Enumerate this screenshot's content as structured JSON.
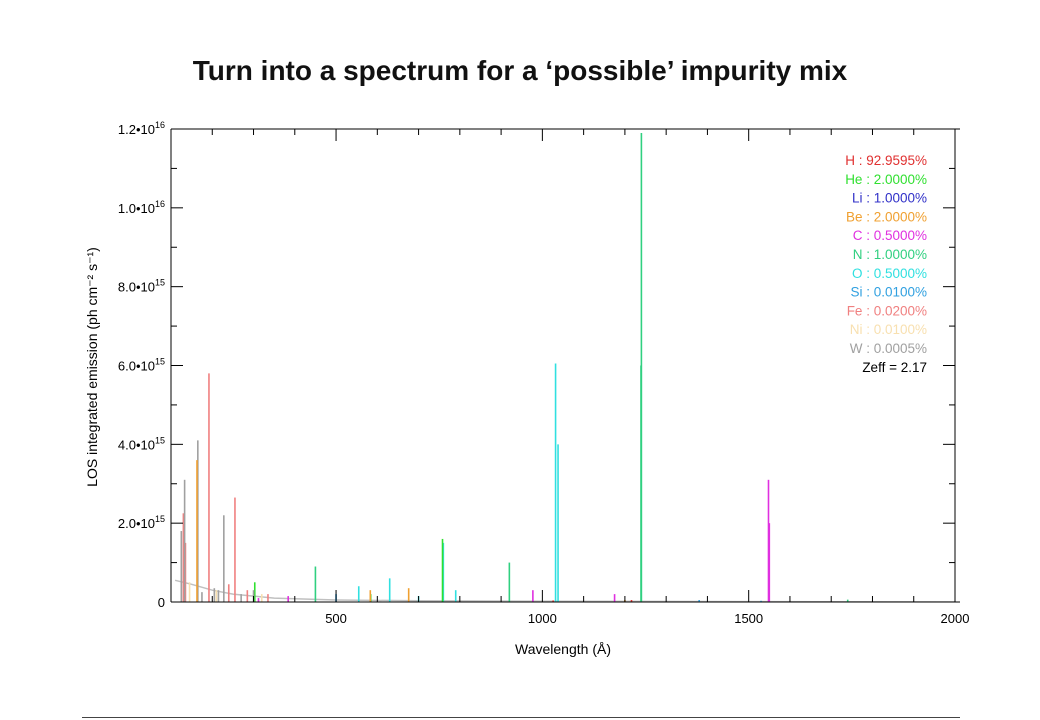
{
  "slide": {
    "title": "Turn into a spectrum for a ‘possible’ impurity mix"
  },
  "chart_data": {
    "type": "line",
    "title": "",
    "xlabel": "Wavelength (Å)",
    "ylabel": "LOS integrated emission (ph cm⁻² s⁻¹)",
    "xlim": [
      100,
      2000
    ],
    "ylim": [
      0,
      1.2e+16
    ],
    "x_ticks": [
      {
        "value": 500,
        "label": "500"
      },
      {
        "value": 1000,
        "label": "1000"
      },
      {
        "value": 1500,
        "label": "1500"
      },
      {
        "value": 2000,
        "label": "2000"
      }
    ],
    "y_ticks": [
      {
        "value": 0,
        "mant": "0",
        "exp": ""
      },
      {
        "value": 2000000000000000.0,
        "mant": "2.0•10",
        "exp": "15"
      },
      {
        "value": 4000000000000000.0,
        "mant": "4.0•10",
        "exp": "15"
      },
      {
        "value": 6000000000000000.0,
        "mant": "6.0•10",
        "exp": "15"
      },
      {
        "value": 8000000000000000.0,
        "mant": "8.0•10",
        "exp": "15"
      },
      {
        "value": 1e+16,
        "mant": "1.0•10",
        "exp": "16"
      },
      {
        "value": 1.2e+16,
        "mant": "1.2•10",
        "exp": "16"
      }
    ],
    "legend_position": "top-right",
    "legend": [
      {
        "element": "H",
        "percent": "92.9595%",
        "color": "#e03030"
      },
      {
        "element": "He",
        "percent": "2.0000%",
        "color": "#30e030"
      },
      {
        "element": "Li",
        "percent": "1.0000%",
        "color": "#3030c8"
      },
      {
        "element": "Be",
        "percent": "2.0000%",
        "color": "#f0a030"
      },
      {
        "element": "C",
        "percent": "0.5000%",
        "color": "#e030e0"
      },
      {
        "element": "N",
        "percent": "1.0000%",
        "color": "#30d080"
      },
      {
        "element": "O",
        "percent": "0.5000%",
        "color": "#30e0e0"
      },
      {
        "element": "Si",
        "percent": "0.0100%",
        "color": "#30a0e0"
      },
      {
        "element": "Fe",
        "percent": "0.0200%",
        "color": "#f08080"
      },
      {
        "element": "Ni",
        "percent": "0.0100%",
        "color": "#f8e0b0"
      },
      {
        "element": "W",
        "percent": "0.0005%",
        "color": "#a0a0a0"
      }
    ],
    "zeff": "Zeff = 2.17",
    "series": [
      {
        "element": "N",
        "color": "#30d080",
        "lines": [
          [
            1240,
            1.19e+16
          ],
          [
            1239,
            6000000000000000.0
          ],
          [
            450,
            900000000000000.0
          ],
          [
            920,
            1000000000000000.0
          ],
          [
            1740,
            60000000000000.0
          ]
        ]
      },
      {
        "element": "O",
        "color": "#30e0e0",
        "lines": [
          [
            1032,
            6050000000000000.0
          ],
          [
            1038,
            4000000000000000.0
          ],
          [
            760,
            1500000000000000.0
          ],
          [
            630,
            600000000000000.0
          ],
          [
            555,
            400000000000000.0
          ],
          [
            790,
            300000000000000.0
          ],
          [
            700,
            150000000000000.0
          ]
        ]
      },
      {
        "element": "He",
        "color": "#30e030",
        "lines": [
          [
            758,
            1600000000000000.0
          ],
          [
            303,
            500000000000000.0
          ],
          [
            584,
            200000000000000.0
          ]
        ]
      },
      {
        "element": "C",
        "color": "#e030e0",
        "lines": [
          [
            1548,
            3100000000000000.0
          ],
          [
            1550,
            2000000000000000.0
          ],
          [
            977,
            300000000000000.0
          ],
          [
            1175,
            200000000000000.0
          ],
          [
            384,
            150000000000000.0
          ],
          [
            312,
            100000000000000.0
          ]
        ]
      },
      {
        "element": "Fe",
        "color": "#f08080",
        "lines": [
          [
            192,
            5800000000000000.0
          ],
          [
            255,
            2650000000000000.0
          ],
          [
            130,
            2250000000000000.0
          ],
          [
            240,
            450000000000000.0
          ],
          [
            135,
            1500000000000000.0
          ],
          [
            285,
            300000000000000.0
          ],
          [
            335,
            200000000000000.0
          ]
        ]
      },
      {
        "element": "W",
        "color": "#a0a0a0",
        "lines": [
          [
            165,
            4100000000000000.0
          ],
          [
            228,
            2200000000000000.0
          ],
          [
            133,
            3100000000000000.0
          ],
          [
            125,
            1800000000000000.0
          ],
          [
            205,
            350000000000000.0
          ],
          [
            300,
            300000000000000.0
          ],
          [
            270,
            200000000000000.0
          ],
          [
            175,
            250000000000000.0
          ],
          [
            215,
            300000000000000.0
          ]
        ]
      },
      {
        "element": "Be",
        "color": "#f0a030",
        "lines": [
          [
            163,
            3600000000000000.0
          ],
          [
            676,
            350000000000000.0
          ],
          [
            583,
            300000000000000.0
          ],
          [
            1200,
            50000000000000.0
          ]
        ]
      },
      {
        "element": "Ni",
        "color": "#f8e0b0",
        "lines": [
          [
            145,
            500000000000000.0
          ],
          [
            210,
            300000000000000.0
          ],
          [
            320,
            200000000000000.0
          ]
        ]
      },
      {
        "element": "Si",
        "color": "#30a0e0",
        "lines": [
          [
            500,
            200000000000000.0
          ],
          [
            1380,
            50000000000000.0
          ],
          [
            1530,
            30000000000000.0
          ]
        ]
      },
      {
        "element": "H",
        "color": "#e03030",
        "lines": [
          [
            1216,
            50000000000000.0
          ],
          [
            1026,
            40000000000000.0
          ]
        ]
      }
    ],
    "baseline": [
      {
        "element": "W",
        "color": "#c0c0c0",
        "points": [
          [
            110,
            550000000000000.0
          ],
          [
            150,
            450000000000000.0
          ],
          [
            200,
            300000000000000.0
          ],
          [
            250,
            200000000000000.0
          ],
          [
            300,
            150000000000000.0
          ],
          [
            350,
            100000000000000.0
          ],
          [
            400,
            80000000000000.0
          ],
          [
            500,
            50000000000000.0
          ],
          [
            700,
            30000000000000.0
          ],
          [
            1000,
            20000000000000.0
          ],
          [
            1500,
            10000000000000.0
          ],
          [
            2000,
            0.0
          ]
        ]
      }
    ]
  }
}
